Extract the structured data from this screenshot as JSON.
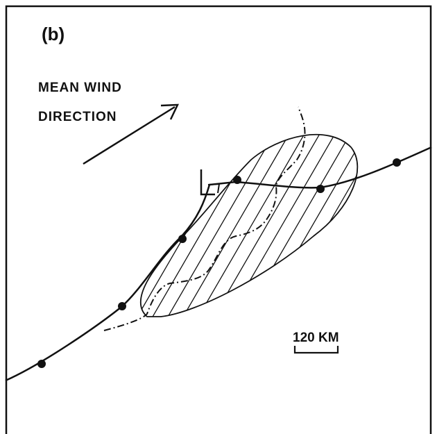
{
  "panel_label": "(b)",
  "wind_label": [
    "MEAN WIND",
    "DIRECTION"
  ],
  "scale_label": "120 KM"
}
